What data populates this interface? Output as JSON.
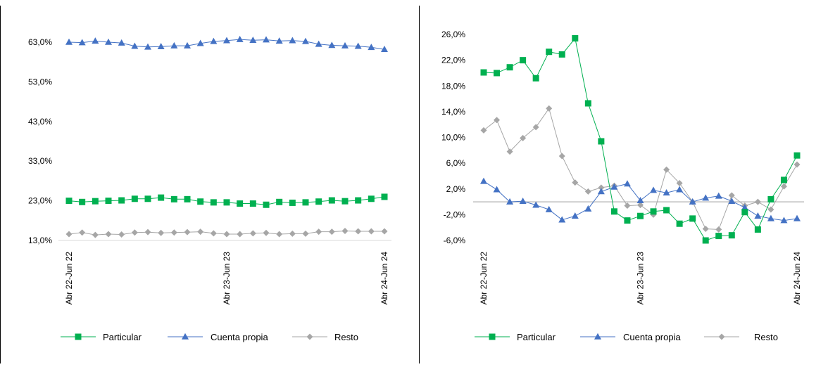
{
  "title": "",
  "colors": {
    "particular": "#00b050",
    "cuenta_propia": "#4472c4",
    "resto": "#a6a6a6",
    "zero_line": "#bfbfbf"
  },
  "chart_data": [
    {
      "type": "line",
      "title": "",
      "xlabel": "",
      "ylabel": "",
      "ylim": [
        13,
        63
      ],
      "y_ticks": [
        "63,0%",
        "53,0%",
        "43,0%",
        "33,0%",
        "23,0%",
        "13,0%"
      ],
      "x_tick_labels": [
        "Abr 22-Jun 22",
        "Abr 23-Jun 23",
        "Abr 24-Jun 24"
      ],
      "x_tick_index": [
        0,
        12,
        24
      ],
      "legend_position": "bottom",
      "series": [
        {
          "name": "Particular",
          "marker": "square",
          "values": [
            23.0,
            22.7,
            22.9,
            23.0,
            23.1,
            23.5,
            23.5,
            23.8,
            23.4,
            23.4,
            22.8,
            22.6,
            22.6,
            22.3,
            22.3,
            22.0,
            22.7,
            22.5,
            22.6,
            22.8,
            23.1,
            22.9,
            23.1,
            23.5,
            24.0
          ]
        },
        {
          "name": "Cuenta propia",
          "marker": "triangle",
          "values": [
            63.0,
            62.9,
            63.3,
            63.0,
            62.8,
            62.0,
            61.8,
            61.9,
            62.1,
            62.1,
            62.7,
            63.2,
            63.4,
            63.7,
            63.5,
            63.6,
            63.3,
            63.4,
            63.2,
            62.5,
            62.2,
            62.1,
            62.0,
            61.7,
            61.2
          ]
        },
        {
          "name": "Resto",
          "marker": "diamond",
          "values": [
            14.6,
            15.0,
            14.4,
            14.6,
            14.5,
            15.0,
            15.1,
            14.9,
            15.0,
            15.1,
            15.2,
            14.8,
            14.6,
            14.6,
            14.8,
            14.9,
            14.6,
            14.7,
            14.7,
            15.2,
            15.2,
            15.4,
            15.3,
            15.3,
            15.3
          ]
        }
      ]
    },
    {
      "type": "line",
      "title": "",
      "xlabel": "",
      "ylabel": "",
      "ylim": [
        -6,
        26
      ],
      "y_ticks": [
        "26,0%",
        "22,0%",
        "18,0%",
        "14,0%",
        "10,0%",
        "6,0%",
        "2,0%",
        "-2,0%",
        "-6,0%"
      ],
      "x_tick_labels": [
        "Abr 22-Jun 22",
        "Abr 23-Jun 23",
        "Abr 24-Jun 24"
      ],
      "x_tick_index": [
        0,
        12,
        24
      ],
      "zero_line": 0,
      "legend_position": "bottom",
      "series": [
        {
          "name": "Particular",
          "marker": "square",
          "values": [
            20.1,
            20.0,
            20.9,
            22.0,
            19.2,
            23.3,
            22.9,
            25.4,
            15.3,
            9.4,
            -1.5,
            -2.9,
            -2.2,
            -1.5,
            -1.3,
            -3.4,
            -2.6,
            -6.0,
            -5.3,
            -5.2,
            -1.6,
            -4.3,
            0.4,
            3.4,
            7.2
          ]
        },
        {
          "name": "Cuenta propia",
          "marker": "triangle",
          "values": [
            3.2,
            1.9,
            0.0,
            0.1,
            -0.5,
            -1.2,
            -2.8,
            -2.2,
            -1.1,
            1.6,
            2.3,
            2.8,
            0.2,
            1.8,
            1.4,
            1.9,
            0.0,
            0.6,
            0.9,
            0.1,
            -0.9,
            -2.2,
            -2.6,
            -2.9,
            -2.6
          ]
        },
        {
          "name": "Resto",
          "marker": "diamond",
          "values": [
            11.1,
            12.7,
            7.8,
            9.9,
            11.6,
            14.5,
            7.1,
            3.0,
            1.6,
            2.2,
            2.5,
            -0.6,
            -0.5,
            -2.0,
            5.0,
            2.9,
            0.0,
            -4.2,
            -4.3,
            1.0,
            -0.6,
            0.0,
            -1.2,
            2.4,
            5.8
          ]
        }
      ]
    }
  ]
}
